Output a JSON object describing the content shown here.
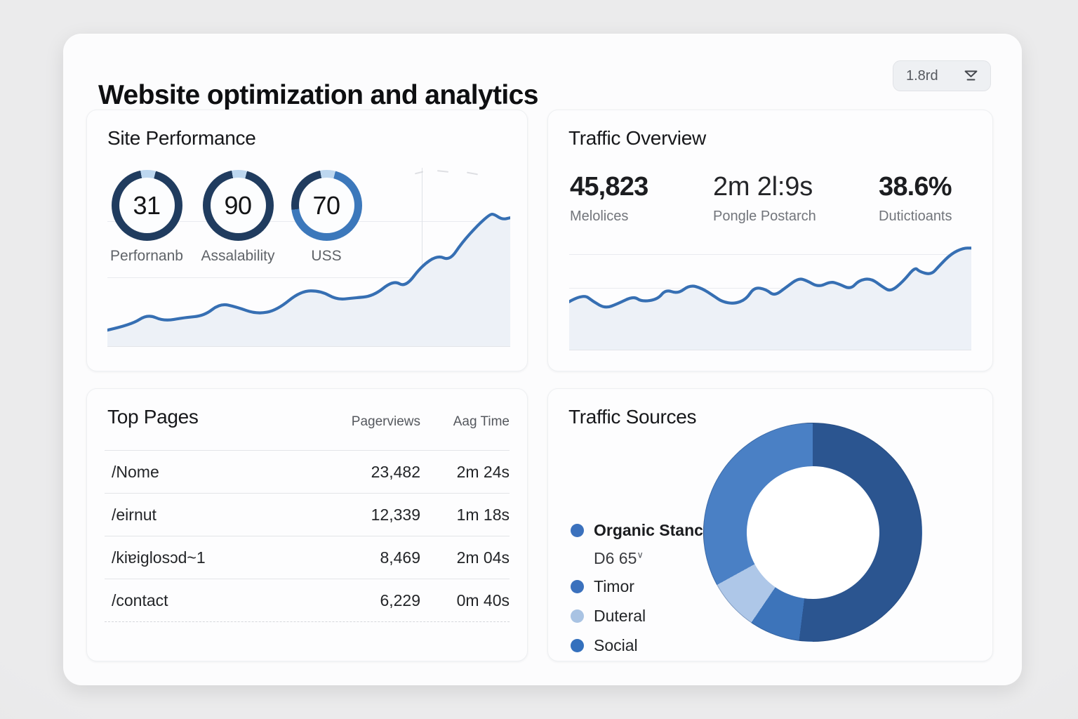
{
  "header": {
    "title": "Website optimization and analytics",
    "filter_label": "1.8rd"
  },
  "site_performance": {
    "title": "Site Performance",
    "gauges": [
      {
        "value": "31",
        "label": "Perfornanb",
        "ring": [
          {
            "color": "#bdd7ef",
            "to": 4
          },
          {
            "color": "#203c5f",
            "to": 97
          },
          {
            "color": "#bdd7ef",
            "to": 100
          }
        ]
      },
      {
        "value": "90",
        "label": "Assalability",
        "ring": [
          {
            "color": "#bdd7ef",
            "to": 4
          },
          {
            "color": "#203c5f",
            "to": 97
          },
          {
            "color": "#bdd7ef",
            "to": 100
          }
        ]
      },
      {
        "value": "70",
        "label": "USS",
        "ring": [
          {
            "color": "#bdd7ef",
            "to": 4
          },
          {
            "color": "#3c78bb",
            "to": 73
          },
          {
            "color": "#203c5f",
            "to": 97
          },
          {
            "color": "#bdd7ef",
            "to": 100
          }
        ]
      }
    ]
  },
  "traffic_overview": {
    "title": "Traffic Overview",
    "stats": [
      {
        "value": "45,823",
        "label": "Melolices"
      },
      {
        "value": "2m 2l:9s",
        "label": "Pongle Postarch"
      },
      {
        "value": "38.6%",
        "label": "Dutictioants"
      }
    ]
  },
  "top_pages": {
    "title": "Top Pages",
    "columns": [
      "Pagerviews",
      "Aag Time"
    ],
    "rows": [
      {
        "page": "/Nome",
        "views": "23,482",
        "time": "2m 24s"
      },
      {
        "page": "/eirnut",
        "views": "12,339",
        "time": "1m 18s"
      },
      {
        "page": "/kiɐiglosɔd~1",
        "views": "8,469",
        "time": "2m 04s"
      },
      {
        "page": "/contact",
        "views": "6,229",
        "time": "0m 40s"
      }
    ]
  },
  "traffic_sources": {
    "title": "Traffic Sources",
    "legend": [
      {
        "label": "Organic Stanch",
        "sublabel": "D6 65",
        "sublabel_suffix": "∨",
        "color": "#3b71bd",
        "bold": true
      },
      {
        "label": "Timor",
        "color": "#3b71bd"
      },
      {
        "label": "Duteral",
        "color": "#a9c3e3"
      },
      {
        "label": "Social",
        "color": "#3470bd"
      }
    ]
  },
  "chart_data": [
    {
      "name": "site_performance_trend",
      "type": "area",
      "title": "Site Performance trend",
      "xlabel": "time (unlabeled)",
      "ylabel": "relative score 0–100 (unlabeled axis, estimated)",
      "line_color": "#366fb3",
      "fill_color": "#edf1f7",
      "grid": true,
      "points": [
        [
          0,
          9
        ],
        [
          6,
          12
        ],
        [
          10,
          18
        ],
        [
          14,
          14
        ],
        [
          19,
          16
        ],
        [
          24,
          17
        ],
        [
          28,
          24
        ],
        [
          32,
          22
        ],
        [
          37,
          18
        ],
        [
          42,
          20
        ],
        [
          48,
          31
        ],
        [
          53,
          31
        ],
        [
          57,
          26
        ],
        [
          61,
          27
        ],
        [
          66,
          28
        ],
        [
          71,
          37
        ],
        [
          74,
          33
        ],
        [
          78,
          45
        ],
        [
          82,
          51
        ],
        [
          85,
          48
        ],
        [
          88,
          58
        ],
        [
          92,
          68
        ],
        [
          95,
          74
        ],
        [
          96,
          74
        ],
        [
          98,
          71
        ],
        [
          100,
          72
        ]
      ]
    },
    {
      "name": "traffic_overview_trend",
      "type": "area",
      "title": "Traffic Overview trend",
      "xlabel": "time (unlabeled)",
      "ylabel": "relative visits 0–100 (unlabeled axis, estimated)",
      "line_color": "#366fb3",
      "fill_color": "#edf1f7",
      "grid": true,
      "points": [
        [
          0,
          43
        ],
        [
          3.5,
          50
        ],
        [
          6,
          43
        ],
        [
          9,
          37
        ],
        [
          12,
          41
        ],
        [
          16,
          48
        ],
        [
          18,
          43
        ],
        [
          22,
          45
        ],
        [
          24,
          54
        ],
        [
          27,
          50
        ],
        [
          30,
          58
        ],
        [
          33,
          55
        ],
        [
          36,
          48
        ],
        [
          38,
          43
        ],
        [
          41,
          41
        ],
        [
          44,
          45
        ],
        [
          46,
          56
        ],
        [
          49,
          54
        ],
        [
          51,
          48
        ],
        [
          54,
          56
        ],
        [
          57,
          64
        ],
        [
          59,
          62
        ],
        [
          62,
          56
        ],
        [
          65,
          61
        ],
        [
          67,
          59
        ],
        [
          70,
          54
        ],
        [
          72,
          62
        ],
        [
          75,
          64
        ],
        [
          78,
          56
        ],
        [
          80,
          52
        ],
        [
          83,
          61
        ],
        [
          86,
          74
        ],
        [
          87,
          70
        ],
        [
          90,
          67
        ],
        [
          92,
          75
        ],
        [
          95,
          86
        ],
        [
          98,
          91
        ],
        [
          100,
          91
        ]
      ]
    },
    {
      "name": "traffic_sources_donut",
      "type": "pie",
      "title": "Traffic Sources",
      "legend_position": "left",
      "segments": [
        {
          "label": "Organic Stanch",
          "value": 52,
          "color": "#2b5590"
        },
        {
          "label": "Social",
          "value": 7.5,
          "color": "#3d74ba"
        },
        {
          "label": "Duteral",
          "value": 7.5,
          "color": "#aec7e8"
        },
        {
          "label": "Timor",
          "value": 33,
          "color": "#4a80c5"
        }
      ]
    }
  ]
}
